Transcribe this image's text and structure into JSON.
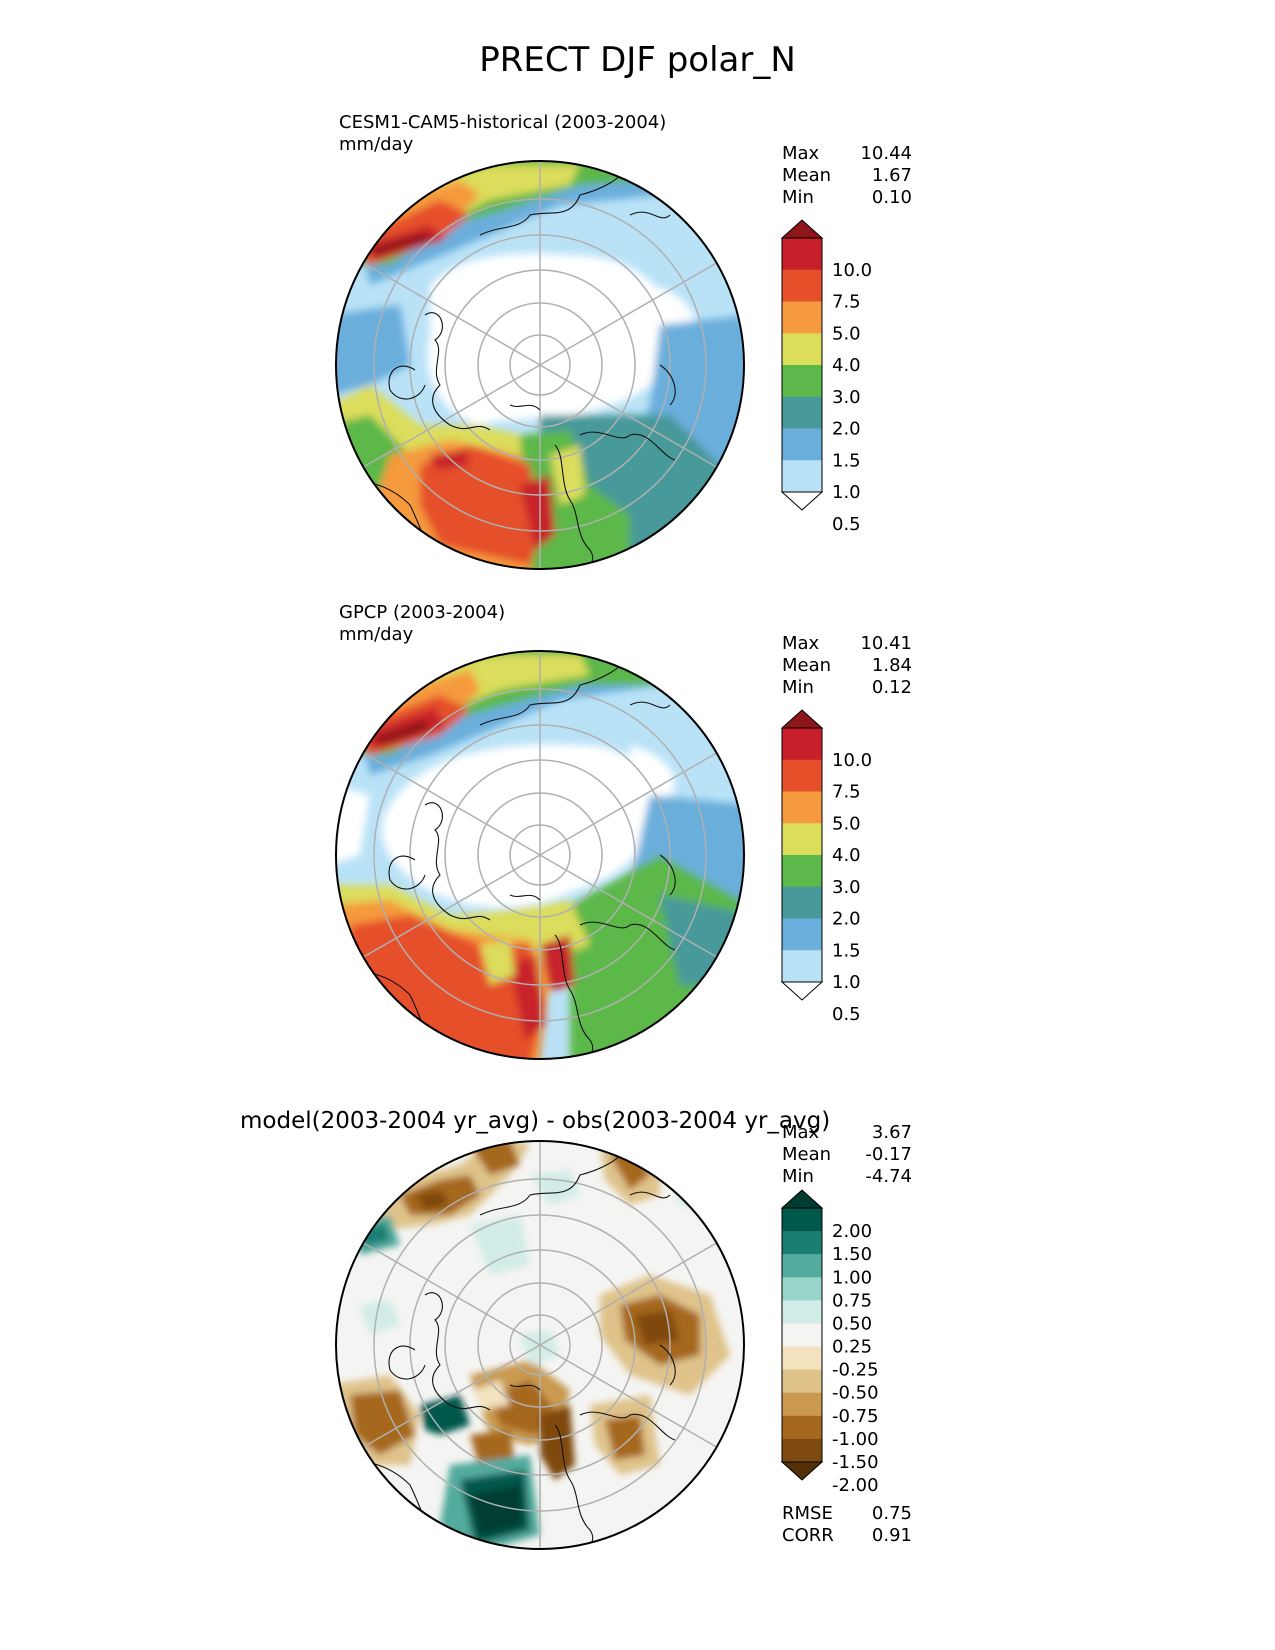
{
  "figure_title": "PRECT DJF polar_N",
  "panels": [
    {
      "title_line1": "CESM1-CAM5-historical (2003-2004)",
      "title_line2": "mm/day",
      "stats": {
        "max_label": "Max",
        "max": "10.44",
        "mean_label": "Mean",
        "mean": "1.67",
        "min_label": "Min",
        "min": "0.10"
      }
    },
    {
      "title_line1": "GPCP (2003-2004)",
      "title_line2": "mm/day",
      "stats": {
        "max_label": "Max",
        "max": "10.41",
        "mean_label": "Mean",
        "mean": "1.84",
        "min_label": "Min",
        "min": "0.12"
      }
    },
    {
      "title_line1": "model(2003-2004 yr_avg) - obs(2003-2004 yr_avg)",
      "stats": {
        "max_label": "Max",
        "max": "3.67",
        "mean_label": "Mean",
        "mean": "-0.17",
        "min_label": "Min",
        "min": "-4.74"
      },
      "metrics": {
        "rmse_label": "RMSE",
        "rmse": "0.75",
        "corr_label": "CORR",
        "corr": "0.91"
      }
    }
  ],
  "colorbars": {
    "precip": {
      "labels": [
        "0.5",
        "1.0",
        "1.5",
        "2.0",
        "3.0",
        "4.0",
        "5.0",
        "7.5",
        "10.0"
      ],
      "colors": [
        "#ffffff",
        "#b9e2f7",
        "#6aaedc",
        "#47999a",
        "#5cb84a",
        "#dcdd5b",
        "#f59a3e",
        "#e5502b",
        "#c8202b",
        "#8e1519"
      ]
    },
    "diff": {
      "labels": [
        "-2.00",
        "-1.50",
        "-1.00",
        "-0.75",
        "-0.50",
        "-0.25",
        "0.25",
        "0.50",
        "0.75",
        "1.00",
        "1.50",
        "2.00"
      ],
      "colors": [
        "#543005",
        "#7f4a10",
        "#a6671f",
        "#c99a4f",
        "#dfc38a",
        "#f2e2bd",
        "#f4f4f2",
        "#d1ece7",
        "#97d6c9",
        "#53ab9e",
        "#1a7e73",
        "#00594c",
        "#003c30"
      ]
    }
  },
  "chart_data": [
    {
      "type": "heatmap",
      "title": "CESM1-CAM5-historical (2003-2004)",
      "units": "mm/day",
      "projection": "north polar stereographic",
      "levels": [
        0.5,
        1.0,
        1.5,
        2.0,
        3.0,
        4.0,
        5.0,
        7.5,
        10.0
      ],
      "max": 10.44,
      "mean": 1.67,
      "min": 0.1
    },
    {
      "type": "heatmap",
      "title": "GPCP (2003-2004)",
      "units": "mm/day",
      "projection": "north polar stereographic",
      "levels": [
        0.5,
        1.0,
        1.5,
        2.0,
        3.0,
        4.0,
        5.0,
        7.5,
        10.0
      ],
      "max": 10.41,
      "mean": 1.84,
      "min": 0.12
    },
    {
      "type": "heatmap",
      "title": "model(2003-2004 yr_avg) - obs(2003-2004 yr_avg)",
      "projection": "north polar stereographic",
      "levels": [
        -2.0,
        -1.5,
        -1.0,
        -0.75,
        -0.5,
        -0.25,
        0.25,
        0.5,
        0.75,
        1.0,
        1.5,
        2.0
      ],
      "max": 3.67,
      "mean": -0.17,
      "min": -4.74,
      "rmse": 0.75,
      "corr": 0.91
    }
  ]
}
